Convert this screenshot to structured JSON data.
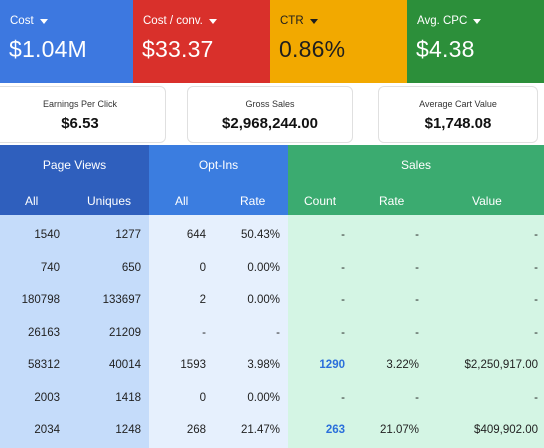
{
  "kpis": [
    {
      "label": "Cost",
      "value": "$1.04M"
    },
    {
      "label": "Cost / conv.",
      "value": "$33.37"
    },
    {
      "label": "CTR",
      "value": "0.86%"
    },
    {
      "label": "Avg. CPC",
      "value": "$4.38"
    }
  ],
  "cards": [
    {
      "title": "Earnings Per Click",
      "value": "$6.53"
    },
    {
      "title": "Gross Sales",
      "value": "$2,968,244.00"
    },
    {
      "title": "Average Cart Value",
      "value": "$1,748.08"
    }
  ],
  "table": {
    "groups": {
      "page_views": "Page Views",
      "opt_ins": "Opt-Ins",
      "sales": "Sales"
    },
    "columns": {
      "pv_all": "All",
      "pv_uniques": "Uniques",
      "oi_all": "All",
      "oi_rate": "Rate",
      "sa_count": "Count",
      "sa_rate": "Rate",
      "sa_value": "Value"
    },
    "rows": [
      [
        "1540",
        "1277",
        "644",
        "50.43%",
        "-",
        "-",
        "-"
      ],
      [
        "740",
        "650",
        "0",
        "0.00%",
        "-",
        "-",
        "-"
      ],
      [
        "180798",
        "133697",
        "2",
        "0.00%",
        "-",
        "-",
        "-"
      ],
      [
        "26163",
        "21209",
        "-",
        "-",
        "-",
        "-",
        "-"
      ],
      [
        "58312",
        "40014",
        "1593",
        "3.98%",
        "1290",
        "3.22%",
        "$2,250,917.00"
      ],
      [
        "2003",
        "1418",
        "0",
        "0.00%",
        "-",
        "-",
        "-"
      ],
      [
        "2034",
        "1248",
        "268",
        "21.47%",
        "263",
        "21.07%",
        "$409,902.00"
      ]
    ]
  },
  "colors": {
    "cost": "#3d78e0",
    "cost_conv": "#d9302b",
    "ctr": "#f2a900",
    "avg_cpc": "#2c8f3a",
    "page_views_header": "#2f5fbd",
    "opt_ins_header": "#3b7de0",
    "sales_header": "#3bab70",
    "link": "#2a6fdb"
  }
}
